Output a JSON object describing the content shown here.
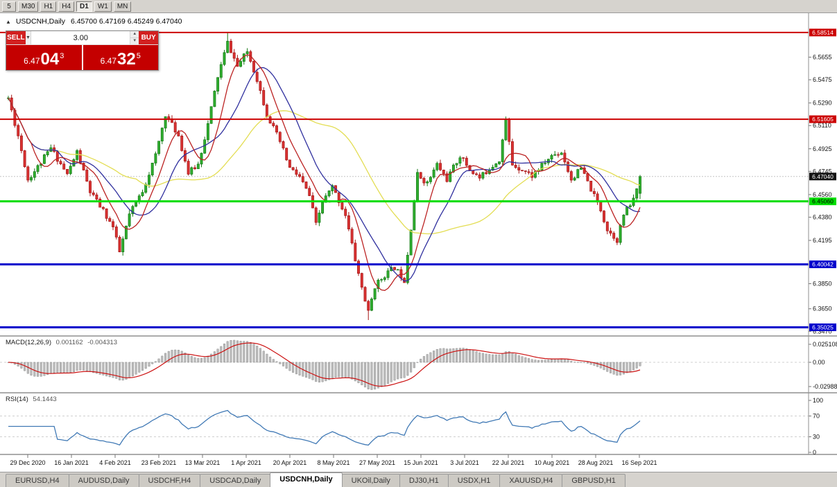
{
  "toolbar": {
    "periods": [
      {
        "label": "5",
        "active": false
      },
      {
        "label": "M30",
        "active": false
      },
      {
        "label": "H1",
        "active": false
      },
      {
        "label": "H4",
        "active": false
      },
      {
        "label": "D1",
        "active": true
      },
      {
        "label": "W1",
        "active": false
      },
      {
        "label": "MN",
        "active": false
      }
    ]
  },
  "chart": {
    "collapse_icon": "▲",
    "title_text": "USDCNH,Daily",
    "title_ohlc": "6.45700 6.47169 6.45249 6.47040"
  },
  "trade_panel": {
    "sell_label": "SELL",
    "buy_label": "BUY",
    "lot_value": "3.00",
    "lot_dropdown_icon": "▼",
    "lot_up_icon": "▲",
    "lot_down_icon": "▼",
    "sell_price_main": "6.47",
    "sell_price_pips": "04",
    "sell_price_sup": "3",
    "buy_price_main": "6.47",
    "buy_price_pips": "32",
    "buy_price_sup": "5"
  },
  "tabs": [
    {
      "label": "EURUSD,H4",
      "active": false
    },
    {
      "label": "AUDUSD,Daily",
      "active": false
    },
    {
      "label": "USDCHF,H4",
      "active": false
    },
    {
      "label": "USDCAD,Daily",
      "active": false
    },
    {
      "label": "USDCNH,Daily",
      "active": true
    },
    {
      "label": "UKOil,Daily",
      "active": false
    },
    {
      "label": "DJ30,H1",
      "active": false
    },
    {
      "label": "USDX,H1",
      "active": false
    },
    {
      "label": "XAUUSD,H4",
      "active": false
    },
    {
      "label": "GBPUSD,H1",
      "active": false
    }
  ],
  "colors": {
    "bull_fill": "#2fae2f",
    "bull_stroke": "#157815",
    "bear_fill": "#d93232",
    "bear_stroke": "#a51616",
    "ma_fast": "#bb2222",
    "ma_mid": "#2f2f9e",
    "ma_slow": "#e3dd52",
    "macd_hist_fill": "#bdbdbd",
    "macd_hist_stroke": "#8f8f8f",
    "macd_signal": "#cc1111",
    "rsi_line": "#4079b5",
    "level_dash": "#cfcfcf",
    "chip_current_bg": "#141414",
    "axis_line": "#8f8f8f",
    "hline_red": "#cc0000",
    "hline_green": "#00dd00",
    "hline_blue": "#0000cc"
  },
  "chart_data": {
    "type": "candlestick",
    "symbol": "USDCNH",
    "timeframe": "Daily",
    "bars": 194,
    "y_range": [
      6.347,
      6.5851
    ],
    "last_ohlc": {
      "open": 6.457,
      "high": 6.47169,
      "low": 6.45249,
      "close": 6.4704
    },
    "current_price": {
      "text": "6.47040",
      "price": 6.4704
    },
    "price_anchors": [
      [
        0,
        6.533
      ],
      [
        3,
        6.503
      ],
      [
        6,
        6.468
      ],
      [
        9,
        6.478
      ],
      [
        13,
        6.493
      ],
      [
        18,
        6.472
      ],
      [
        21,
        6.49
      ],
      [
        25,
        6.458
      ],
      [
        29,
        6.443
      ],
      [
        32,
        6.43
      ],
      [
        34,
        6.41
      ],
      [
        37,
        6.44
      ],
      [
        41,
        6.459
      ],
      [
        45,
        6.487
      ],
      [
        48,
        6.52
      ],
      [
        52,
        6.503
      ],
      [
        55,
        6.473
      ],
      [
        58,
        6.48
      ],
      [
        61,
        6.512
      ],
      [
        64,
        6.55
      ],
      [
        67,
        6.577
      ],
      [
        70,
        6.558
      ],
      [
        73,
        6.57
      ],
      [
        76,
        6.548
      ],
      [
        79,
        6.52
      ],
      [
        83,
        6.498
      ],
      [
        86,
        6.477
      ],
      [
        89,
        6.47
      ],
      [
        92,
        6.455
      ],
      [
        94,
        6.432
      ],
      [
        96,
        6.45
      ],
      [
        99,
        6.462
      ],
      [
        103,
        6.44
      ],
      [
        106,
        6.404
      ],
      [
        108,
        6.382
      ],
      [
        110,
        6.362
      ],
      [
        112,
        6.383
      ],
      [
        115,
        6.392
      ],
      [
        118,
        6.398
      ],
      [
        121,
        6.388
      ],
      [
        123,
        6.43
      ],
      [
        125,
        6.472
      ],
      [
        128,
        6.465
      ],
      [
        131,
        6.48
      ],
      [
        134,
        6.468
      ],
      [
        138,
        6.487
      ],
      [
        141,
        6.476
      ],
      [
        144,
        6.469
      ],
      [
        147,
        6.477
      ],
      [
        150,
        6.484
      ],
      [
        152,
        6.515
      ],
      [
        154,
        6.48
      ],
      [
        157,
        6.476
      ],
      [
        160,
        6.471
      ],
      [
        163,
        6.479
      ],
      [
        166,
        6.487
      ],
      [
        169,
        6.49
      ],
      [
        172,
        6.468
      ],
      [
        175,
        6.477
      ],
      [
        178,
        6.46
      ],
      [
        181,
        6.444
      ],
      [
        183,
        6.428
      ],
      [
        186,
        6.42
      ],
      [
        188,
        6.44
      ],
      [
        191,
        6.452
      ],
      [
        193,
        6.4704
      ]
    ],
    "wick_overrides": [
      [
        67,
        "h",
        6.5849
      ],
      [
        110,
        "l",
        6.356
      ]
    ],
    "hlines": [
      {
        "price": 6.58514,
        "label": "6.58514",
        "color": "#cc0000",
        "width": 2
      },
      {
        "price": 6.51605,
        "label": "6.51605",
        "color": "#cc0000",
        "width": 2
      },
      {
        "price": 6.4506,
        "label": "6.45060",
        "color": "#00dd00",
        "width": 3
      },
      {
        "price": 6.40042,
        "label": "6.40042",
        "color": "#0000cc",
        "width": 3
      },
      {
        "price": 6.35025,
        "label": "6.35025",
        "color": "#0000cc",
        "width": 3
      }
    ],
    "moving_averages": [
      {
        "period": 40,
        "color": "#e3dd52",
        "name": "slow"
      },
      {
        "period": 16,
        "color": "#2f2f9e",
        "name": "medium"
      },
      {
        "period": 8,
        "color": "#bb2222",
        "name": "fast"
      }
    ],
    "price_ticks": [
      {
        "text": "6.5655",
        "price": 6.5655
      },
      {
        "text": "6.5475",
        "price": 6.5475
      },
      {
        "text": "6.5290",
        "price": 6.529
      },
      {
        "text": "6.5110",
        "price": 6.511
      },
      {
        "text": "6.4925",
        "price": 6.4925
      },
      {
        "text": "6.4745",
        "price": 6.4745
      },
      {
        "text": "6.4560",
        "price": 6.456
      },
      {
        "text": "6.4380",
        "price": 6.438
      },
      {
        "text": "6.4195",
        "price": 6.4195
      },
      {
        "text": "6.3850",
        "price": 6.385
      },
      {
        "text": "6.3650",
        "price": 6.365
      },
      {
        "text": "6.3470",
        "price": 6.347
      }
    ],
    "x_ticks": [
      "29 Dec 2020",
      "16 Jan 2021",
      "4 Feb 2021",
      "23 Feb 2021",
      "13 Mar 2021",
      "1 Apr 2021",
      "20 Apr 2021",
      "8 May 2021",
      "27 May 2021",
      "15 Jun 2021",
      "3 Jul 2021",
      "22 Jul 2021",
      "10 Aug 2021",
      "28 Aug 2021",
      "16 Sep 2021"
    ],
    "indicators": {
      "macd": {
        "title": "MACD(12,26,9)",
        "value_main": "0.001162",
        "value_signal": "-0.004313",
        "axis_top": "0.025108",
        "axis_zero": "0.00",
        "axis_bottom": "-0.029886",
        "params": [
          12,
          26,
          9
        ]
      },
      "rsi": {
        "title": "RSI(14)",
        "value": "54.1443",
        "axis_labels": [
          "100",
          "70",
          "30",
          "0"
        ],
        "levels": [
          70,
          30
        ],
        "params": [
          14
        ]
      }
    }
  }
}
